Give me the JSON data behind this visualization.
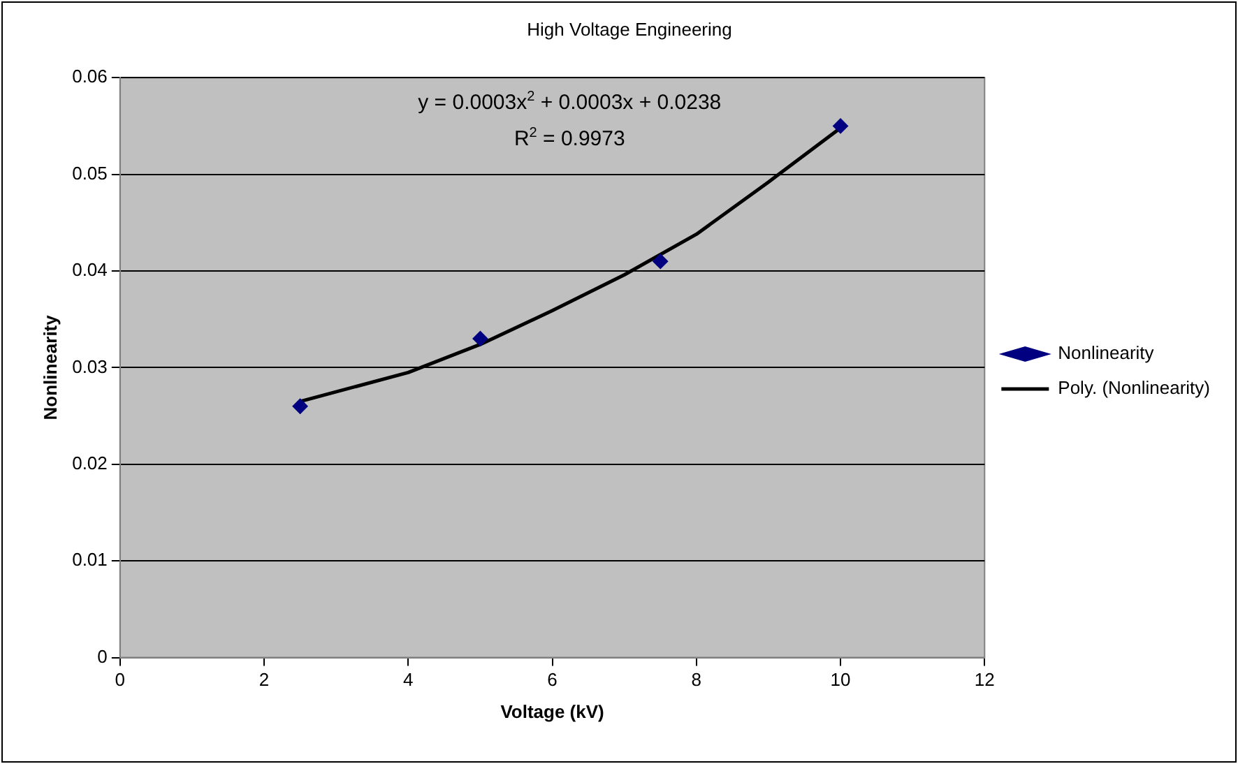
{
  "chart_data": {
    "type": "scatter",
    "title": "High Voltage Engineering",
    "xlabel": "Voltage (kV)",
    "ylabel": "Nonlinearity",
    "annotations": [
      "y = 0.0003x$^{2}$ + 0.0003x + 0.0238",
      "R$^{2}$ = 0.9973"
    ],
    "series": [
      {
        "name": "Nonlinearity",
        "color": "#000080",
        "marker": "diamond",
        "x": [
          2.5,
          5,
          7.5,
          10
        ],
        "values": [
          0.026,
          0.033,
          0.041,
          0.055
        ]
      },
      {
        "name": "Poly. (Nonlinearity)",
        "type": "line",
        "color": "#000000",
        "marker": "none",
        "line_style": "solid",
        "x": [
          2.5,
          4,
          5,
          6,
          7,
          8,
          9,
          10
        ],
        "values": [
          0.0265,
          0.0295,
          0.0324,
          0.0359,
          0.0396,
          0.0438,
          0.0492,
          0.0548
        ]
      }
    ],
    "xlim": [
      0,
      12
    ],
    "xticks": [
      0,
      2,
      4,
      6,
      8,
      10,
      12
    ],
    "ylim": [
      0,
      0.06
    ],
    "yticks": [
      0,
      0.01,
      0.02,
      0.03,
      0.04,
      0.05,
      0.06
    ],
    "grid": "y",
    "legend": "right"
  }
}
